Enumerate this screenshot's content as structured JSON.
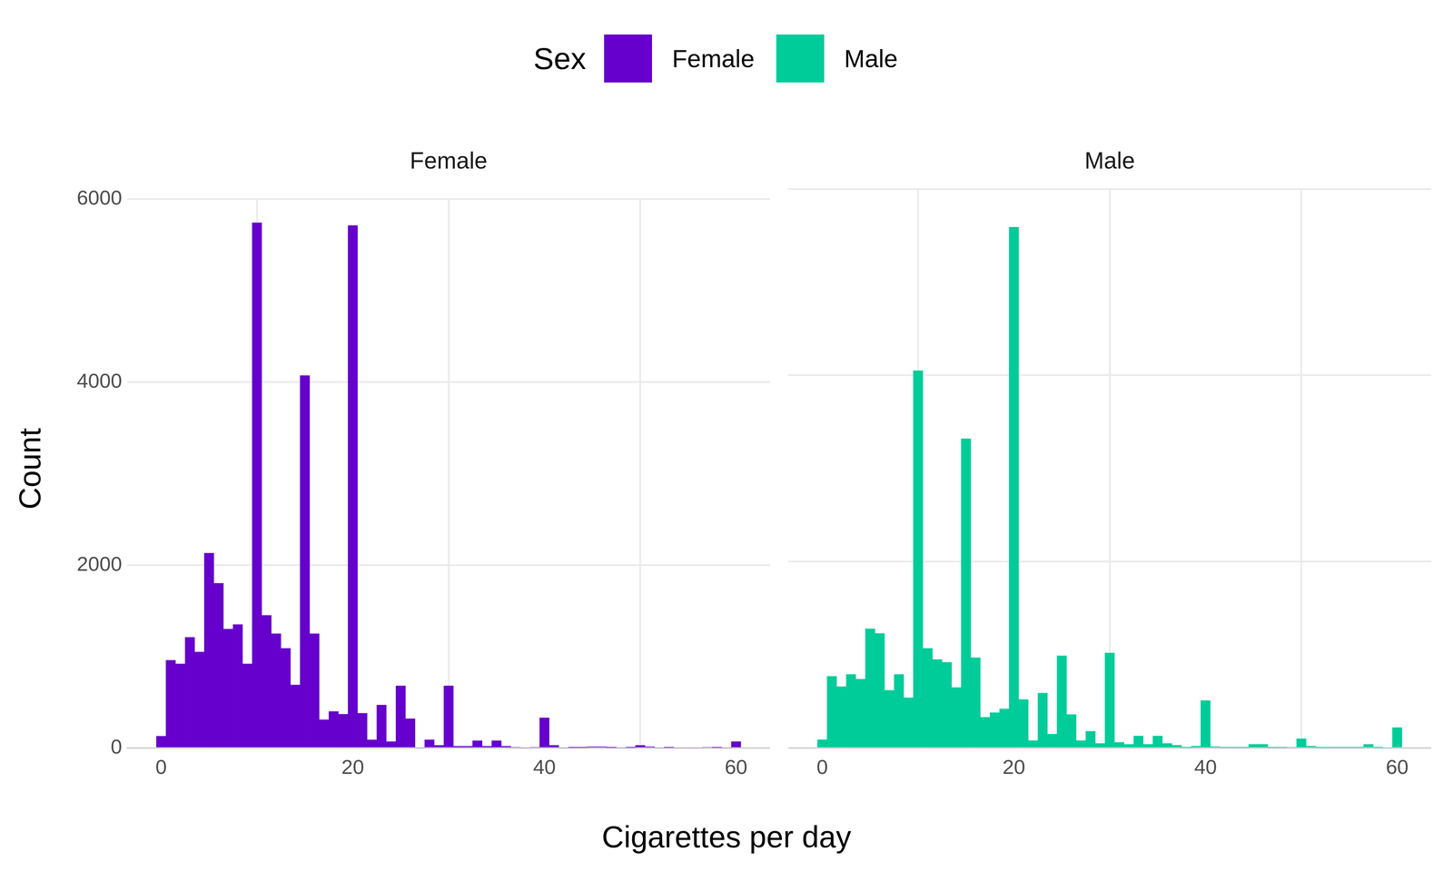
{
  "chart_data": {
    "type": "histogram",
    "legend_title": "Sex",
    "legend": "top",
    "x_label": "Cigarettes per day",
    "y_label": "Count",
    "bins": [
      -0.5,
      0.5,
      1.5,
      2.5,
      3.5,
      4.5,
      5.5,
      6.5,
      7.5,
      8.5,
      9.5,
      10.5,
      11.5,
      12.5,
      13.5,
      14.5,
      15.5,
      16.5,
      17.5,
      18.5,
      19.5,
      20.5,
      21.5,
      22.5,
      23.5,
      24.5,
      25.5,
      26.5,
      27.5,
      28.5,
      29.5,
      30.5,
      31.5,
      32.5,
      33.5,
      34.5,
      35.5,
      36.5,
      37.5,
      38.5,
      39.5,
      40.5,
      41.5,
      42.5,
      43.5,
      44.5,
      45.5,
      46.5,
      47.5,
      48.5,
      49.5,
      50.5,
      51.5,
      52.5,
      53.5,
      54.5,
      55.5,
      56.5,
      57.5,
      58.5,
      59.5,
      60.5
    ],
    "series": [
      {
        "name": "Female",
        "color": "#6600cc",
        "values": [
          130,
          960,
          920,
          1210,
          1050,
          2130,
          1800,
          1300,
          1350,
          920,
          5740,
          1450,
          1250,
          1090,
          690,
          4070,
          1250,
          310,
          400,
          370,
          5710,
          380,
          90,
          470,
          70,
          680,
          320,
          0,
          90,
          30,
          680,
          20,
          20,
          80,
          20,
          80,
          20,
          10,
          0,
          10,
          330,
          30,
          0,
          5,
          5,
          15,
          15,
          5,
          0,
          5,
          30,
          15,
          0,
          5,
          0,
          0,
          0,
          10,
          5,
          0,
          70
        ]
      },
      {
        "name": "Male",
        "color": "#00cc99",
        "values": [
          90,
          770,
          660,
          790,
          740,
          1280,
          1230,
          620,
          790,
          540,
          4050,
          1070,
          950,
          920,
          650,
          3320,
          970,
          330,
          380,
          420,
          5590,
          520,
          80,
          590,
          150,
          990,
          360,
          80,
          180,
          50,
          1020,
          60,
          40,
          130,
          40,
          130,
          50,
          30,
          5,
          20,
          510,
          15,
          5,
          5,
          5,
          40,
          40,
          5,
          5,
          10,
          100,
          20,
          5,
          5,
          5,
          5,
          5,
          40,
          5,
          0,
          220
        ]
      }
    ],
    "xlim": [
      -3.55,
      63.55
    ],
    "xticks": [
      0,
      20,
      40,
      60
    ],
    "ylim": [
      0,
      6000
    ],
    "yticks": [
      0,
      2000,
      4000,
      6000
    ],
    "grid": true
  }
}
